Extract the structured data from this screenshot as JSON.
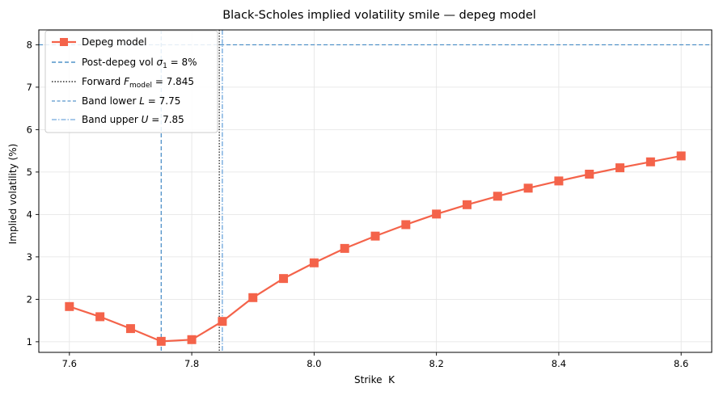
{
  "chart_data": {
    "type": "line",
    "title": "Black-Scholes implied volatility smile — depeg model",
    "xlabel": "Strike  K",
    "ylabel": "Implied volatility (%)",
    "xlim": [
      7.55,
      8.65
    ],
    "ylim": [
      0.75,
      8.35
    ],
    "xticks": [
      7.6,
      7.8,
      8.0,
      8.2,
      8.4,
      8.6
    ],
    "xtick_labels": [
      "7.6",
      "7.8",
      "8.0",
      "8.2",
      "8.4",
      "8.6"
    ],
    "yticks": [
      1,
      2,
      3,
      4,
      5,
      6,
      7,
      8
    ],
    "ytick_labels": [
      "1",
      "2",
      "3",
      "4",
      "5",
      "6",
      "7",
      "8"
    ],
    "grid": true,
    "legend_position": "top-left",
    "series": [
      {
        "name": "Depeg model",
        "color": "#f4634a",
        "marker": "square",
        "x": [
          7.6,
          7.65,
          7.7,
          7.75,
          7.8,
          7.85,
          7.9,
          7.95,
          8.0,
          8.05,
          8.1,
          8.15,
          8.2,
          8.25,
          8.3,
          8.35,
          8.4,
          8.45,
          8.5,
          8.55,
          8.6
        ],
        "y": [
          1.83,
          1.59,
          1.31,
          1.01,
          1.05,
          1.48,
          2.04,
          2.49,
          2.86,
          3.2,
          3.49,
          3.76,
          4.01,
          4.23,
          4.43,
          4.62,
          4.79,
          4.95,
          5.1,
          5.24,
          5.38
        ]
      }
    ],
    "reference_lines": [
      {
        "orientation": "horizontal",
        "value": 8.0,
        "style": "dashed",
        "color": "#2f7dbf",
        "legend_text": "Post-depeg vol σ₁ = 8%"
      },
      {
        "orientation": "vertical",
        "value": 7.845,
        "style": "dotted",
        "color": "#000000",
        "legend_text": "Forward F_model = 7.845"
      },
      {
        "orientation": "vertical",
        "value": 7.75,
        "style": "dashed",
        "color": "#2f7dbf",
        "legend_text": "Band lower L = 7.75"
      },
      {
        "orientation": "vertical",
        "value": 7.85,
        "style": "dashdot",
        "color": "#4f93d6",
        "legend_text": "Band upper U = 7.85"
      }
    ]
  }
}
